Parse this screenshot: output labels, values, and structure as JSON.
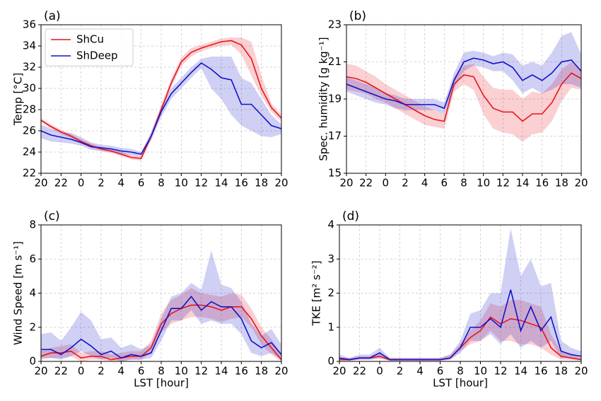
{
  "chart_data": [
    {
      "type": "line",
      "label": "(a)",
      "ylabel": "Temp [°C]",
      "legend": "upper left",
      "x": [
        20,
        21,
        22,
        23,
        24,
        25,
        26,
        27,
        28,
        29,
        30,
        31,
        32,
        33,
        34,
        35,
        36,
        37,
        38,
        39,
        40,
        41,
        42,
        43,
        44
      ],
      "xlim": [
        20,
        44
      ],
      "xticks": [
        20,
        22,
        {
          "value": 24,
          "label": "0"
        },
        {
          "value": 26,
          "label": "2"
        },
        {
          "value": 28,
          "label": "4"
        },
        {
          "value": 30,
          "label": "6"
        },
        {
          "value": 32,
          "label": "8"
        },
        {
          "value": 34,
          "label": "10"
        },
        {
          "value": 36,
          "label": "12"
        },
        {
          "value": 38,
          "label": "14"
        },
        {
          "value": 40,
          "label": "16"
        },
        {
          "value": 42,
          "label": "18"
        },
        {
          "value": 44,
          "label": "20"
        }
      ],
      "ylim": [
        22,
        36
      ],
      "yticks": [
        22,
        24,
        26,
        28,
        30,
        32,
        34,
        36
      ],
      "grid": true,
      "series": [
        {
          "name": "ShCu",
          "color": "#e8141c",
          "values": [
            27.0,
            26.4,
            25.9,
            25.5,
            25.0,
            24.6,
            24.3,
            24.1,
            23.8,
            23.5,
            23.4,
            25.5,
            28.0,
            30.5,
            32.5,
            33.4,
            33.8,
            34.1,
            34.4,
            34.5,
            34.1,
            32.8,
            30.0,
            28.2,
            27.2
          ],
          "lower": [
            26.8,
            26.2,
            25.7,
            25.3,
            24.8,
            24.4,
            24.1,
            23.9,
            23.6,
            23.3,
            23.2,
            25.2,
            27.6,
            30.1,
            32.1,
            33.0,
            33.5,
            33.8,
            34.0,
            34.1,
            33.2,
            31.2,
            29.3,
            27.8,
            26.9
          ],
          "upper": [
            27.2,
            26.6,
            26.1,
            25.7,
            25.2,
            24.8,
            24.5,
            24.3,
            24.0,
            23.7,
            23.6,
            25.8,
            28.4,
            30.9,
            32.9,
            33.8,
            34.1,
            34.4,
            34.7,
            34.8,
            34.8,
            34.4,
            31.2,
            28.6,
            27.5
          ]
        },
        {
          "name": "ShDeep",
          "color": "#1212c8",
          "values": [
            26.0,
            25.6,
            25.4,
            25.2,
            24.9,
            24.5,
            24.4,
            24.3,
            24.1,
            24.0,
            23.8,
            25.5,
            27.8,
            29.5,
            30.5,
            31.5,
            32.4,
            31.8,
            31.0,
            30.8,
            28.5,
            28.5,
            27.5,
            26.5,
            26.2
          ],
          "lower": [
            25.3,
            25.0,
            24.9,
            24.8,
            24.6,
            24.2,
            24.1,
            24.0,
            23.8,
            23.7,
            23.6,
            25.1,
            27.3,
            29.0,
            30.0,
            31.0,
            31.9,
            30.0,
            29.0,
            27.5,
            26.5,
            26.0,
            25.5,
            25.4,
            25.7
          ],
          "upper": [
            26.6,
            26.2,
            25.9,
            25.8,
            25.4,
            24.9,
            24.7,
            24.6,
            24.4,
            24.3,
            24.0,
            25.9,
            28.3,
            30.0,
            31.0,
            32.0,
            32.8,
            33.0,
            33.0,
            33.0,
            31.0,
            30.5,
            29.0,
            27.5,
            26.6
          ]
        }
      ]
    },
    {
      "type": "line",
      "label": "(b)",
      "ylabel": "Spec. humidity [g kg⁻¹]",
      "x": [
        20,
        21,
        22,
        23,
        24,
        25,
        26,
        27,
        28,
        29,
        30,
        31,
        32,
        33,
        34,
        35,
        36,
        37,
        38,
        39,
        40,
        41,
        42,
        43,
        44
      ],
      "xlim": [
        20,
        44
      ],
      "xticks": [
        20,
        22,
        {
          "value": 24,
          "label": "0"
        },
        {
          "value": 26,
          "label": "2"
        },
        {
          "value": 28,
          "label": "4"
        },
        {
          "value": 30,
          "label": "6"
        },
        {
          "value": 32,
          "label": "8"
        },
        {
          "value": 34,
          "label": "10"
        },
        {
          "value": 36,
          "label": "12"
        },
        {
          "value": 38,
          "label": "14"
        },
        {
          "value": 40,
          "label": "16"
        },
        {
          "value": 42,
          "label": "18"
        },
        {
          "value": 44,
          "label": "20"
        }
      ],
      "ylim": [
        15,
        23
      ],
      "yticks": [
        15,
        17,
        19,
        21,
        23
      ],
      "grid": true,
      "series": [
        {
          "color": "#e8141c",
          "values": [
            20.2,
            20.1,
            19.9,
            19.6,
            19.3,
            19.0,
            18.7,
            18.4,
            18.1,
            17.9,
            17.8,
            19.8,
            20.3,
            20.2,
            19.2,
            18.5,
            18.3,
            18.3,
            17.8,
            18.2,
            18.2,
            18.8,
            19.8,
            20.4,
            20.1
          ],
          "lower": [
            19.5,
            19.4,
            19.3,
            19.0,
            18.8,
            18.5,
            18.2,
            17.9,
            17.6,
            17.5,
            17.4,
            19.4,
            19.8,
            19.5,
            18.2,
            17.4,
            17.2,
            17.1,
            16.7,
            17.1,
            17.2,
            17.8,
            18.9,
            19.6,
            19.5
          ],
          "upper": [
            20.9,
            20.8,
            20.5,
            20.2,
            19.8,
            19.5,
            19.2,
            18.9,
            18.6,
            18.4,
            18.2,
            20.2,
            20.8,
            20.9,
            20.2,
            19.6,
            19.5,
            19.5,
            19.0,
            19.4,
            19.3,
            19.8,
            20.6,
            21.0,
            20.6
          ]
        },
        {
          "color": "#1212c8",
          "values": [
            19.8,
            19.6,
            19.4,
            19.2,
            19.0,
            18.9,
            18.7,
            18.7,
            18.7,
            18.7,
            18.5,
            20.0,
            21.0,
            21.2,
            21.1,
            20.9,
            21.0,
            20.7,
            20.0,
            20.3,
            20.0,
            20.4,
            21.0,
            21.1,
            20.5
          ],
          "lower": [
            19.4,
            19.2,
            19.0,
            18.8,
            18.7,
            18.5,
            18.4,
            18.4,
            18.4,
            18.4,
            18.2,
            19.6,
            20.5,
            20.8,
            20.7,
            20.5,
            20.5,
            20.0,
            19.3,
            19.6,
            19.3,
            19.5,
            19.8,
            19.8,
            19.6
          ],
          "upper": [
            20.2,
            20.0,
            19.8,
            19.6,
            19.3,
            19.2,
            19.0,
            19.0,
            19.0,
            19.0,
            18.8,
            20.4,
            21.5,
            21.6,
            21.5,
            21.3,
            21.5,
            21.4,
            20.8,
            21.0,
            20.8,
            21.5,
            22.4,
            22.6,
            21.4
          ]
        }
      ]
    },
    {
      "type": "line",
      "label": "(c)",
      "ylabel": "Wind Speed [m s⁻¹]",
      "xlabel": "LST [hour]",
      "x": [
        20,
        21,
        22,
        23,
        24,
        25,
        26,
        27,
        28,
        29,
        30,
        31,
        32,
        33,
        34,
        35,
        36,
        37,
        38,
        39,
        40,
        41,
        42,
        43,
        44
      ],
      "xlim": [
        20,
        44
      ],
      "xticks": [
        20,
        22,
        {
          "value": 24,
          "label": "0"
        },
        {
          "value": 26,
          "label": "2"
        },
        {
          "value": 28,
          "label": "4"
        },
        {
          "value": 30,
          "label": "6"
        },
        {
          "value": 32,
          "label": "8"
        },
        {
          "value": 34,
          "label": "10"
        },
        {
          "value": 36,
          "label": "12"
        },
        {
          "value": 38,
          "label": "14"
        },
        {
          "value": 40,
          "label": "16"
        },
        {
          "value": 42,
          "label": "18"
        },
        {
          "value": 44,
          "label": "20"
        }
      ],
      "ylim": [
        0,
        8
      ],
      "yticks": [
        0,
        2,
        4,
        6,
        8
      ],
      "grid": true,
      "series": [
        {
          "color": "#e8141c",
          "values": [
            0.3,
            0.5,
            0.5,
            0.6,
            0.2,
            0.3,
            0.3,
            0.1,
            0.2,
            0.3,
            0.3,
            0.8,
            2.2,
            2.8,
            3.1,
            3.3,
            3.3,
            3.2,
            3.0,
            3.2,
            3.2,
            2.5,
            1.5,
            0.8,
            0.1
          ],
          "lower": [
            0.1,
            0.2,
            0.2,
            0.3,
            0.0,
            0.1,
            0.1,
            0.0,
            0.0,
            0.1,
            0.1,
            0.5,
            1.7,
            2.2,
            2.4,
            2.6,
            2.6,
            2.5,
            2.3,
            2.5,
            2.6,
            2.0,
            1.0,
            0.4,
            0.0
          ],
          "upper": [
            0.6,
            0.8,
            0.9,
            1.0,
            0.5,
            0.6,
            0.6,
            0.4,
            0.5,
            0.6,
            0.6,
            1.2,
            2.8,
            3.6,
            3.9,
            4.3,
            4.0,
            3.9,
            3.8,
            4.0,
            3.9,
            3.1,
            2.0,
            1.3,
            0.4
          ]
        },
        {
          "color": "#1212c8",
          "values": [
            0.7,
            0.7,
            0.4,
            0.8,
            1.3,
            0.9,
            0.4,
            0.6,
            0.2,
            0.4,
            0.3,
            0.5,
            1.8,
            3.1,
            3.1,
            3.8,
            3.0,
            3.5,
            3.2,
            3.2,
            2.5,
            1.2,
            0.8,
            1.1,
            0.4
          ],
          "lower": [
            0.2,
            0.2,
            0.1,
            0.3,
            0.6,
            0.3,
            0.1,
            0.2,
            0.0,
            0.1,
            0.1,
            0.2,
            1.2,
            2.4,
            2.4,
            3.0,
            2.2,
            2.4,
            2.2,
            2.2,
            1.6,
            0.5,
            0.3,
            0.5,
            0.1
          ],
          "upper": [
            1.6,
            1.7,
            1.2,
            2.0,
            2.9,
            2.4,
            1.3,
            1.4,
            0.8,
            1.0,
            0.7,
            1.0,
            2.5,
            3.8,
            4.0,
            4.6,
            4.2,
            6.5,
            4.5,
            4.3,
            3.5,
            2.2,
            1.5,
            1.9,
            1.0
          ]
        }
      ]
    },
    {
      "type": "line",
      "label": "(d)",
      "ylabel": "TKE [m² s⁻²]",
      "xlabel": "LST [hour]",
      "x": [
        20,
        21,
        22,
        23,
        24,
        25,
        26,
        27,
        28,
        29,
        30,
        31,
        32,
        33,
        34,
        35,
        36,
        37,
        38,
        39,
        40,
        41,
        42,
        43,
        44
      ],
      "xlim": [
        20,
        44
      ],
      "xticks": [
        20,
        22,
        {
          "value": 24,
          "label": "0"
        },
        {
          "value": 26,
          "label": "2"
        },
        {
          "value": 28,
          "label": "4"
        },
        {
          "value": 30,
          "label": "6"
        },
        {
          "value": 32,
          "label": "8"
        },
        {
          "value": 34,
          "label": "10"
        },
        {
          "value": 36,
          "label": "12"
        },
        {
          "value": 38,
          "label": "14"
        },
        {
          "value": 40,
          "label": "16"
        },
        {
          "value": 42,
          "label": "18"
        },
        {
          "value": 44,
          "label": "20"
        }
      ],
      "ylim": [
        0,
        4
      ],
      "yticks": [
        0,
        1,
        2,
        3,
        4
      ],
      "grid": true,
      "series": [
        {
          "color": "#e8141c",
          "values": [
            0.05,
            0.05,
            0.1,
            0.1,
            0.15,
            0.05,
            0.05,
            0.05,
            0.05,
            0.05,
            0.05,
            0.1,
            0.4,
            0.7,
            0.9,
            1.3,
            1.1,
            1.25,
            1.2,
            1.1,
            1.0,
            0.4,
            0.15,
            0.1,
            0.05
          ],
          "lower": [
            0.02,
            0.02,
            0.05,
            0.05,
            0.08,
            0.02,
            0.02,
            0.02,
            0.02,
            0.02,
            0.02,
            0.05,
            0.3,
            0.5,
            0.6,
            0.9,
            0.6,
            0.6,
            0.5,
            0.5,
            0.4,
            0.2,
            0.05,
            0.05,
            0.02
          ],
          "upper": [
            0.1,
            0.1,
            0.15,
            0.15,
            0.25,
            0.1,
            0.1,
            0.1,
            0.1,
            0.1,
            0.1,
            0.2,
            0.5,
            0.9,
            1.2,
            1.7,
            1.6,
            1.8,
            1.8,
            1.7,
            1.6,
            0.8,
            0.3,
            0.2,
            0.1
          ]
        },
        {
          "color": "#1212c8",
          "values": [
            0.1,
            0.05,
            0.1,
            0.1,
            0.25,
            0.05,
            0.05,
            0.05,
            0.05,
            0.05,
            0.05,
            0.1,
            0.4,
            1.0,
            1.0,
            1.25,
            1.0,
            2.1,
            0.9,
            1.6,
            0.9,
            1.3,
            0.3,
            0.2,
            0.15
          ],
          "lower": [
            0.05,
            0.02,
            0.05,
            0.05,
            0.1,
            0.02,
            0.02,
            0.02,
            0.02,
            0.02,
            0.02,
            0.05,
            0.25,
            0.6,
            0.6,
            0.8,
            0.5,
            0.8,
            0.4,
            0.6,
            0.4,
            0.6,
            0.1,
            0.1,
            0.05
          ],
          "upper": [
            0.2,
            0.1,
            0.2,
            0.2,
            0.4,
            0.1,
            0.1,
            0.1,
            0.1,
            0.1,
            0.1,
            0.2,
            0.6,
            1.4,
            1.5,
            2.0,
            2.0,
            3.9,
            2.5,
            3.0,
            2.2,
            2.3,
            0.6,
            0.4,
            0.3
          ]
        }
      ]
    }
  ]
}
